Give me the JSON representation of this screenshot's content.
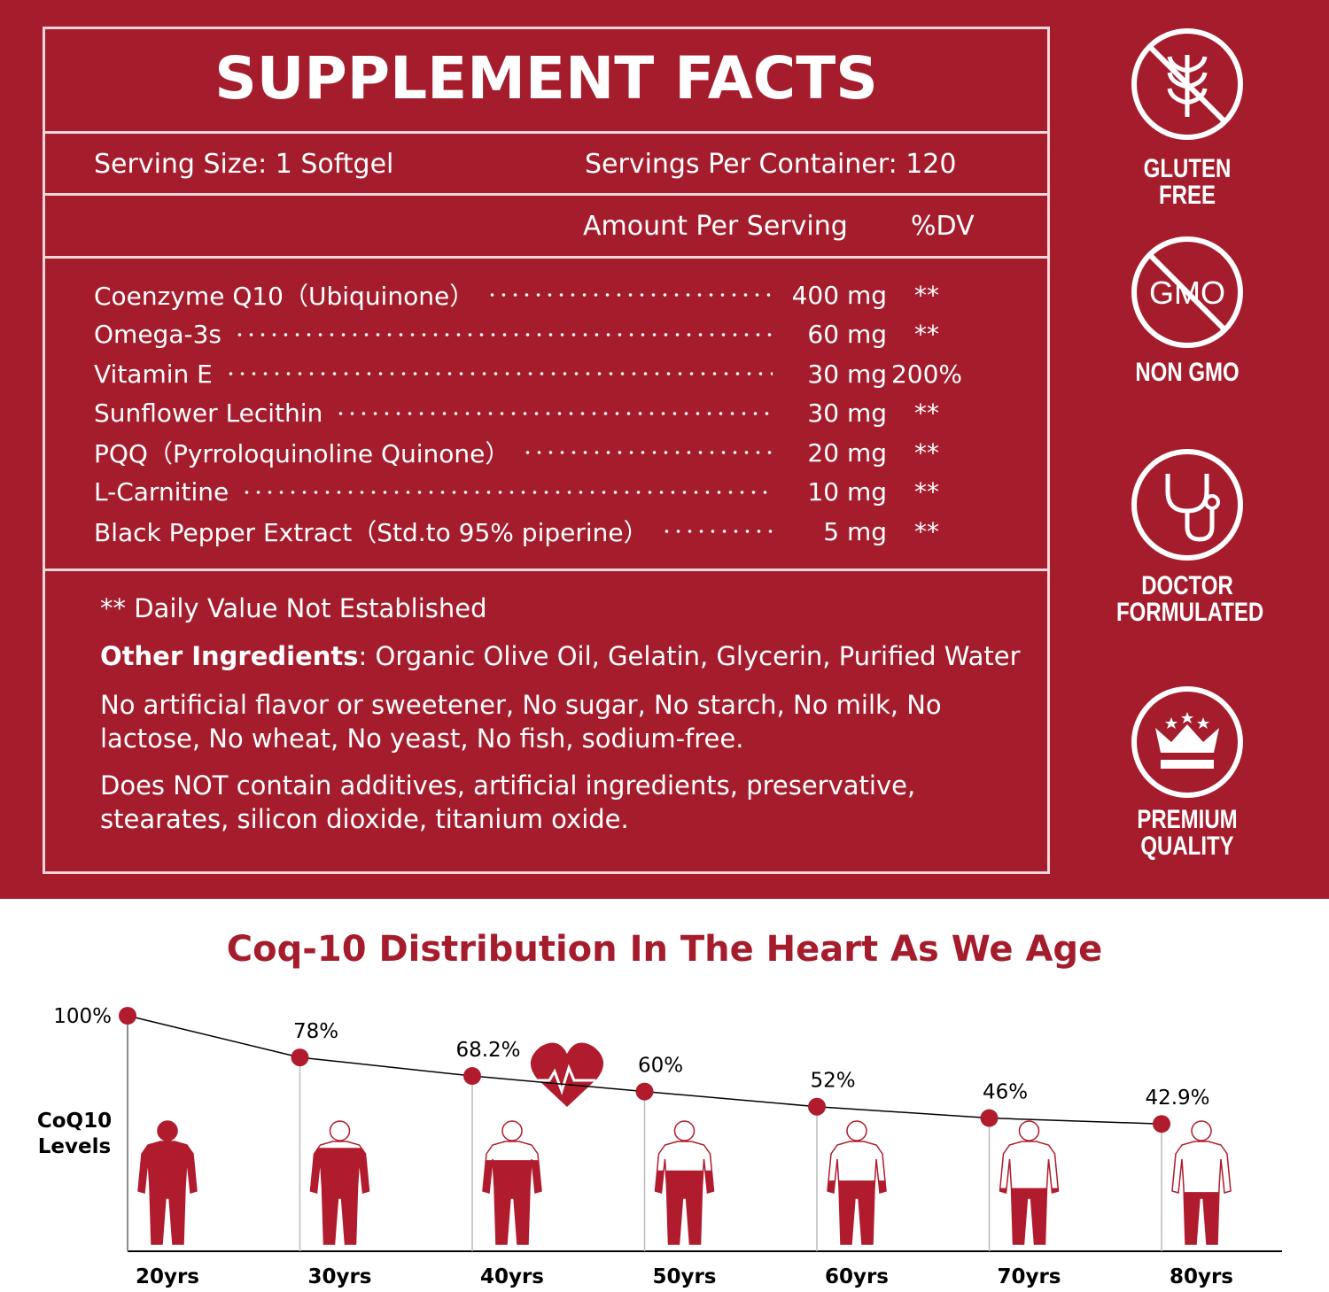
{
  "facts": {
    "title": "SUPPLEMENT FACTS",
    "serving_size": "Serving Size: 1 Softgel",
    "servings_per_container": "Servings Per Container: 120",
    "amount_header": "Amount Per Serving",
    "dv_header": "%DV",
    "ingredients": [
      {
        "name": "Coenzyme Q10（Ubiquinone）",
        "amount": "400 mg",
        "dv": "**"
      },
      {
        "name": "Omega-3s",
        "amount": "60 mg",
        "dv": "**"
      },
      {
        "name": "Vitamin E",
        "amount": "30 mg",
        "dv": "200%"
      },
      {
        "name": "Sunflower Lecithin",
        "amount": "30 mg",
        "dv": "**"
      },
      {
        "name": "PQQ（Pyrroloquinoline Quinone）",
        "amount": "20 mg",
        "dv": "**"
      },
      {
        "name": "L-Carnitine",
        "amount": "10 mg",
        "dv": "**"
      },
      {
        "name": "Black Pepper Extract（Std.to 95% piperine）",
        "amount": "5 mg",
        "dv": "**"
      }
    ],
    "footnote": "** Daily Value Not Established",
    "other_label": "Other Ingredients",
    "other_text": ": Organic Olive Oil, Gelatin, Glycerin, Purified Water",
    "note1": "No artificial flavor or sweetener, No sugar, No starch, No milk, No lactose, No wheat, No yeast, No fish, sodium-free.",
    "note2": "Does NOT contain additives, artificial ingredients, preservative, stearates, silicon dioxide, titanium oxide."
  },
  "badges": [
    {
      "label": "GLUTEN FREE"
    },
    {
      "label": "NON GMO",
      "icon_text": "GMO"
    },
    {
      "label": "DOCTOR FORMULATED"
    },
    {
      "label": "PREMIUM QUALITY"
    }
  ],
  "chart_data": {
    "type": "line",
    "title": "Coq-10 Distribution In The Heart As We Age",
    "y_label": "CoQ10 Levels",
    "categories": [
      "20yrs",
      "30yrs",
      "40yrs",
      "50yrs",
      "60yrs",
      "70yrs",
      "80yrs"
    ],
    "values": [
      100,
      78,
      68.2,
      60,
      52,
      46,
      42.9
    ],
    "value_labels": [
      "100%",
      "78%",
      "68.2%",
      "60%",
      "52%",
      "46%",
      "42.9%"
    ],
    "ylim": [
      0,
      100
    ],
    "color": "#b01c2e"
  }
}
